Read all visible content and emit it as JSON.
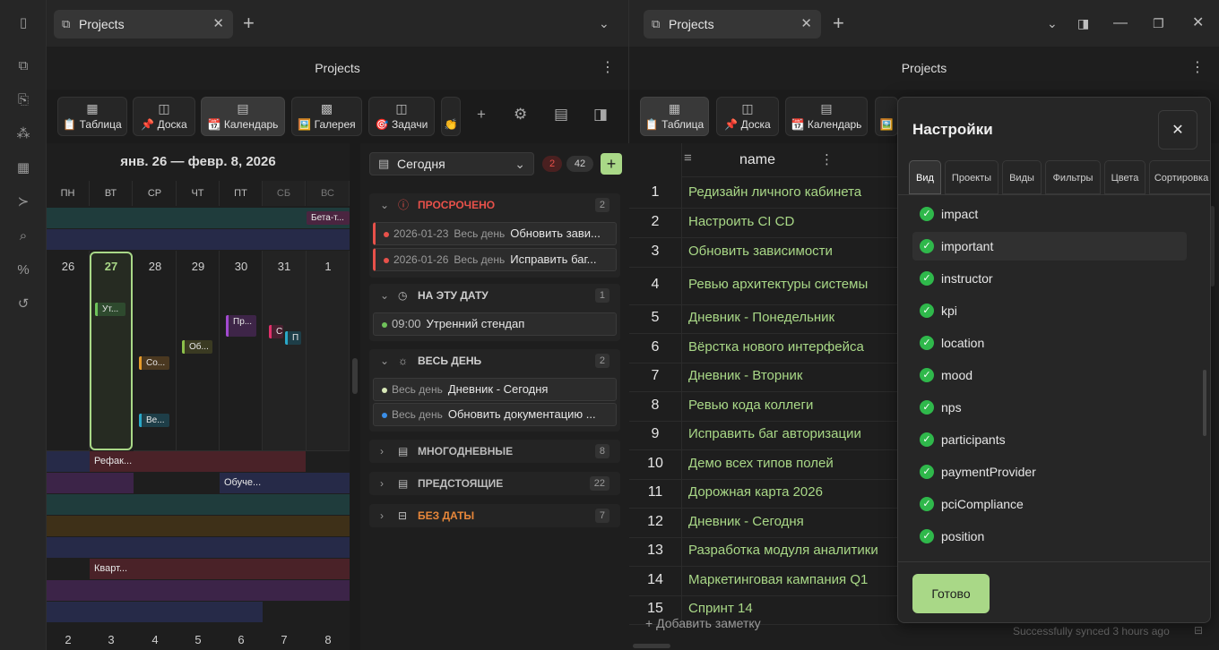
{
  "left_pane": {
    "tab_title": "Projects",
    "view_title": "Projects",
    "view_tabs": [
      {
        "icon": "table-icon",
        "label": "📋 Таблица"
      },
      {
        "icon": "board-icon",
        "label": "📌 Доска"
      },
      {
        "icon": "calendar-icon",
        "label": "📆 Календарь"
      },
      {
        "icon": "gallery-icon",
        "label": "🖼️ Галерея"
      },
      {
        "icon": "tasks-icon",
        "label": "🎯 Задачи"
      },
      {
        "icon": "more-icon",
        "label": "👏"
      }
    ],
    "calendar": {
      "range_title": "янв. 26 — февр. 8, 2026",
      "weekdays": [
        "ПН",
        "ВТ",
        "СР",
        "ЧТ",
        "ПТ",
        "СБ",
        "ВС"
      ],
      "week1_days": [
        "26",
        "27",
        "28",
        "29",
        "30",
        "31",
        "1"
      ],
      "week2_days": [
        "2",
        "3",
        "4",
        "5",
        "6",
        "7",
        "8"
      ],
      "top_event": "Бета-т...",
      "events": [
        "Ут...",
        "Со...",
        "Ве...",
        "Об...",
        "Пр...",
        "С",
        "П"
      ],
      "span_events": [
        "Рефак...",
        "Обуче...",
        "Кварт..."
      ]
    },
    "agenda": {
      "filter_label": "Сегодня",
      "badge_overdue": "2",
      "badge_total": "42",
      "add_label": "+",
      "sections": [
        {
          "title": "ПРОСРОЧЕНО",
          "count": "2",
          "items": [
            {
              "date": "2026-01-23",
              "time": "Весь день",
              "title": "Обновить зави..."
            },
            {
              "date": "2026-01-26",
              "time": "Весь день",
              "title": "Исправить баг..."
            }
          ]
        },
        {
          "title": "НА ЭТУ ДАТУ",
          "count": "1",
          "items": [
            {
              "time": "09:00",
              "title": "Утренний стендап"
            }
          ]
        },
        {
          "title": "ВЕСЬ ДЕНЬ",
          "count": "2",
          "items": [
            {
              "time": "Весь день",
              "title": "Дневник - Сегодня"
            },
            {
              "time": "Весь день",
              "title": "Обновить документацию ..."
            }
          ]
        },
        {
          "title": "МНОГОДНЕВНЫЕ",
          "count": "8"
        },
        {
          "title": "ПРЕДСТОЯЩИЕ",
          "count": "22"
        },
        {
          "title": "БЕЗ ДАТЫ",
          "count": "7"
        }
      ]
    }
  },
  "right_pane": {
    "tab_title": "Projects",
    "view_title": "Projects",
    "view_tabs": [
      {
        "icon": "table-icon",
        "label": "📋 Таблица"
      },
      {
        "icon": "board-icon",
        "label": "📌 Доска"
      },
      {
        "icon": "calendar-icon",
        "label": "📆 Календарь"
      },
      {
        "icon": "gallery-icon",
        "label": "🖼️"
      }
    ],
    "table": {
      "column_name": "name",
      "rows": [
        {
          "n": "1",
          "name": "Редизайн личного кабинета"
        },
        {
          "n": "2",
          "name": "Настроить CI CD"
        },
        {
          "n": "3",
          "name": "Обновить зависимости"
        },
        {
          "n": "4",
          "name": "Ревью архитектуры системы"
        },
        {
          "n": "5",
          "name": "Дневник - Понедельник"
        },
        {
          "n": "6",
          "name": "Вёрстка нового интерфейса"
        },
        {
          "n": "7",
          "name": "Дневник - Вторник"
        },
        {
          "n": "8",
          "name": "Ревью кода коллеги"
        },
        {
          "n": "9",
          "name": "Исправить баг авторизации"
        },
        {
          "n": "10",
          "name": "Демо всех типов полей"
        },
        {
          "n": "11",
          "name": "Дорожная карта 2026"
        },
        {
          "n": "12",
          "name": "Дневник - Сегодня"
        },
        {
          "n": "13",
          "name": "Разработка модуля аналитики"
        },
        {
          "n": "14",
          "name": "Маркетинговая кампания Q1"
        },
        {
          "n": "15",
          "name": "Спринт 14"
        }
      ],
      "add_note": "+ Добавить заметку"
    },
    "status": "Successfully synced 3 hours ago",
    "settings": {
      "title": "Настройки",
      "tabs": [
        "Вид",
        "Проекты",
        "Виды",
        "Фильтры",
        "Цвета",
        "Сортировка"
      ],
      "properties": [
        "impact",
        "important",
        "instructor",
        "kpi",
        "location",
        "mood",
        "nps",
        "participants",
        "paymentProvider",
        "pciCompliance",
        "position"
      ],
      "done_label": "Готово"
    }
  },
  "colors": {
    "accent": "#a9d887",
    "overdue": "#e8514a",
    "nodate": "#e8873a",
    "check": "#2fb84b"
  }
}
